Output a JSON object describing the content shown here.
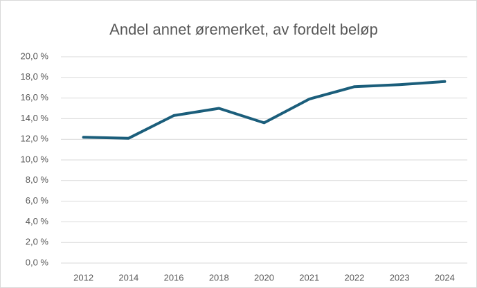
{
  "chart_data": {
    "type": "line",
    "title": "Andel annet øremerket, av fordelt beløp",
    "categories": [
      "2012",
      "2014",
      "2016",
      "2018",
      "2020",
      "2021",
      "2022",
      "2023",
      "2024"
    ],
    "values": [
      12.2,
      12.1,
      14.3,
      15.0,
      13.6,
      15.9,
      17.1,
      17.3,
      17.6
    ],
    "color": "#1b5e7b",
    "ylim": [
      0,
      20
    ],
    "yticks": [
      {
        "value": 0,
        "label": "0,0 %"
      },
      {
        "value": 2,
        "label": "2,0 %"
      },
      {
        "value": 4,
        "label": "4,0 %"
      },
      {
        "value": 6,
        "label": "6,0 %"
      },
      {
        "value": 8,
        "label": "8,0 %"
      },
      {
        "value": 10,
        "label": "10,0 %"
      },
      {
        "value": 12,
        "label": "12,0 %"
      },
      {
        "value": 14,
        "label": "14,0 %"
      },
      {
        "value": 16,
        "label": "16,0 %"
      },
      {
        "value": 18,
        "label": "18,0 %"
      },
      {
        "value": 20,
        "label": "20,0 %"
      }
    ],
    "grid": true
  }
}
